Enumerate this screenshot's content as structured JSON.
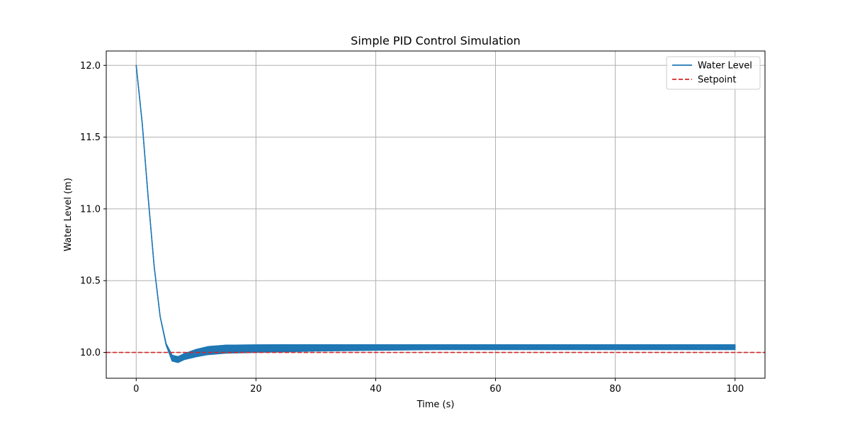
{
  "chart_data": {
    "type": "line",
    "title": "Simple PID Control Simulation",
    "xlabel": "Time (s)",
    "ylabel": "Water Level (m)",
    "xlim": [
      -5,
      105
    ],
    "ylim": [
      9.82,
      12.1
    ],
    "xticks": [
      0,
      20,
      40,
      60,
      80,
      100
    ],
    "xtick_labels": [
      "0",
      "20",
      "40",
      "60",
      "80",
      "100"
    ],
    "yticks": [
      10.0,
      10.5,
      11.0,
      11.5,
      12.0
    ],
    "ytick_labels": [
      "10.0",
      "10.5",
      "11.0",
      "11.5",
      "12.0"
    ],
    "grid": true,
    "legend_position": "top-right",
    "series": [
      {
        "name": "Water Level",
        "color": "#1f77b4",
        "style": "solid",
        "oscillating": true,
        "upper": {
          "x": [
            0,
            1,
            2,
            3,
            4,
            5,
            6,
            7,
            8,
            10,
            12,
            15,
            20,
            25,
            30,
            40,
            50,
            60,
            70,
            80,
            90,
            100
          ],
          "y": [
            12.0,
            11.6,
            11.08,
            10.6,
            10.25,
            10.06,
            9.98,
            9.97,
            9.99,
            10.02,
            10.04,
            10.05,
            10.052,
            10.053,
            10.053,
            10.053,
            10.053,
            10.053,
            10.053,
            10.053,
            10.053,
            10.053
          ]
        },
        "lower": {
          "x": [
            0,
            1,
            2,
            3,
            4,
            5,
            6,
            7,
            8,
            10,
            12,
            15,
            20,
            25,
            30,
            40,
            50,
            60,
            70,
            80,
            90,
            100
          ],
          "y": [
            12.0,
            11.6,
            11.08,
            10.6,
            10.25,
            10.05,
            9.94,
            9.93,
            9.95,
            9.97,
            9.985,
            9.995,
            10.0,
            10.005,
            10.01,
            10.015,
            10.02,
            10.02,
            10.02,
            10.02,
            10.02,
            10.02
          ]
        }
      },
      {
        "name": "Setpoint",
        "color": "#d62728",
        "style": "dashed",
        "y_constant": 10.0
      }
    ]
  }
}
